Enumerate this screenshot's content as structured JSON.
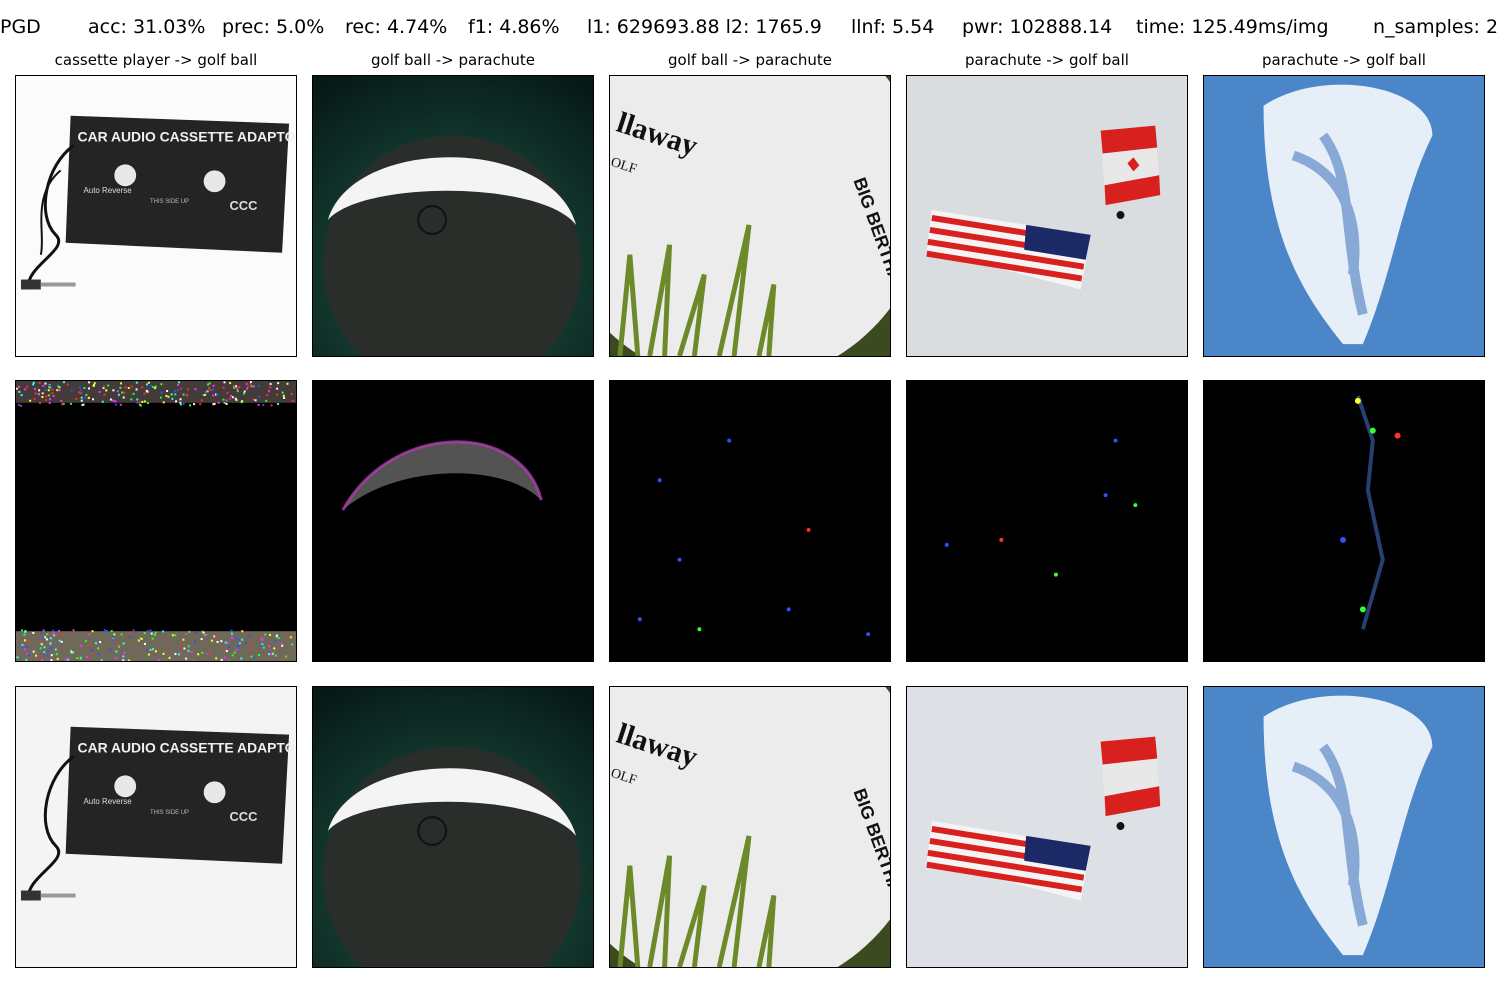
{
  "header": {
    "method": "PGD",
    "acc": "acc: 31.03%",
    "prec": "prec: 5.0%",
    "rec": "rec: 4.74%",
    "f1": "f1: 4.86%",
    "l1_l2": "l1: 629693.88 l2: 1765.9",
    "linf": "llnf: 5.54",
    "pwr": "pwr: 102888.14",
    "time": "time: 125.49ms/img",
    "n_samples": "n_samples: 2"
  },
  "columns": [
    {
      "title": "cassette player -> golf ball"
    },
    {
      "title": "golf ball -> parachute"
    },
    {
      "title": "golf ball -> parachute"
    },
    {
      "title": "parachute -> golf ball"
    },
    {
      "title": "parachute -> golf ball"
    }
  ],
  "image_text": {
    "cassette_label": "CAR AUDIO CASSETTE ADAPTOR",
    "cassette_side": "THIS SIDE UP",
    "cassette_auto": "Auto Reverse",
    "cassette_brand": "CCC",
    "golf_brand": "llaway",
    "golf_sub": "OLF",
    "golf_big": "BIG BERTHA"
  },
  "colors": {
    "background": "#ffffff",
    "perturbation_bg": "#000000",
    "green_bg": "#0e3a30",
    "sky_blue": "#4a86c8",
    "sky_gray": "#d9dde0",
    "flag_red": "#d8201e"
  }
}
